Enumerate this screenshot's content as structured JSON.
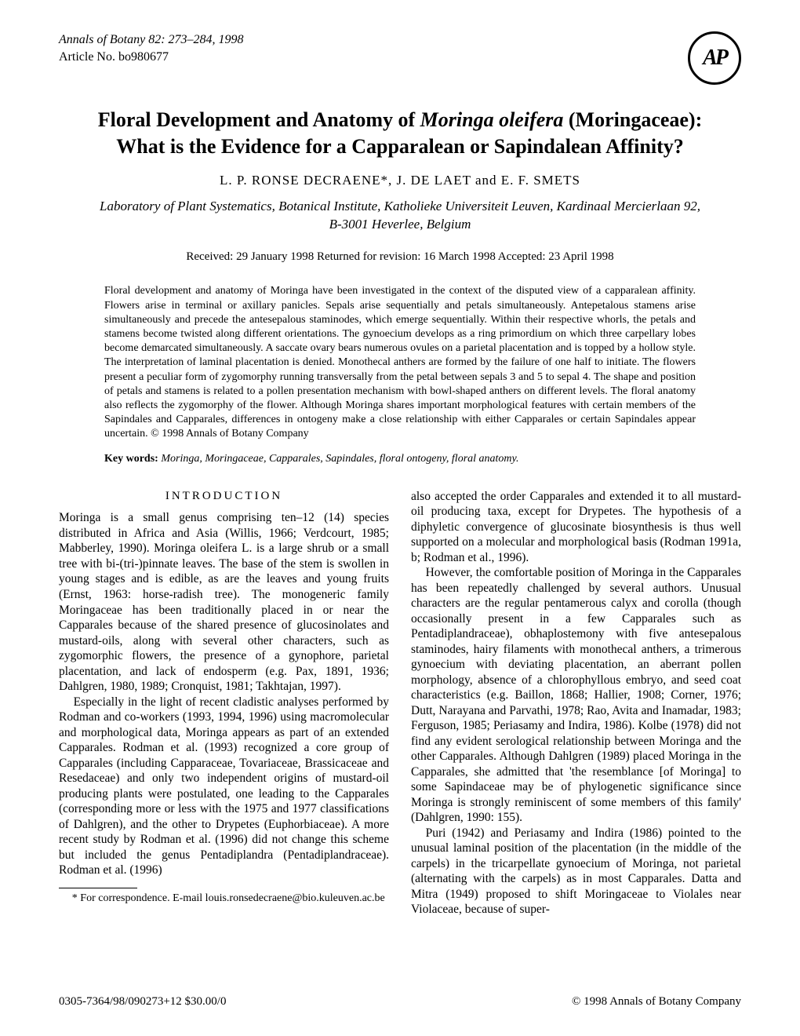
{
  "journal": {
    "name_vol": "Annals of Botany 82: 273–284, 1998",
    "article_no": "Article No. bo980677"
  },
  "logo_text": "AP",
  "title_line1": "Floral Development and Anatomy of ",
  "title_species": "Moringa oleifera",
  "title_line1b": " (Moringaceae):",
  "title_line2": "What is the Evidence for a Capparalean or Sapindalean Affinity?",
  "authors": "L. P. RONSE DECRAENE*, J. DE LAET and E. F. SMETS",
  "affiliation_line1": "Laboratory of Plant Systematics, Botanical Institute, Katholieke Universiteit Leuven, Kardinaal Mercierlaan 92,",
  "affiliation_line2": "B-3001 Heverlee, Belgium",
  "dates": "Received: 29 January 1998    Returned for revision: 16 March 1998    Accepted: 23 April 1998",
  "abstract": "Floral development and anatomy of Moringa have been investigated in the context of the disputed view of a capparalean affinity. Flowers arise in terminal or axillary panicles. Sepals arise sequentially and petals simultaneously. Antepetalous stamens arise simultaneously and precede the antesepalous staminodes, which emerge sequentially. Within their respective whorls, the petals and stamens become twisted along different orientations. The gynoecium develops as a ring primordium on which three carpellary lobes become demarcated simultaneously. A saccate ovary bears numerous ovules on a parietal placentation and is topped by a hollow style. The interpretation of laminal placentation is denied. Monothecal anthers are formed by the failure of one half to initiate. The flowers present a peculiar form of zygomorphy running transversally from the petal between sepals 3 and 5 to sepal 4. The shape and position of petals and stamens is related to a pollen presentation mechanism with bowl-shaped anthers on different levels. The floral anatomy also reflects the zygomorphy of the flower. Although Moringa shares important morphological features with certain members of the Sapindales and Capparales, differences in ontogeny make a close relationship with either Capparales or certain Sapindales appear uncertain.    © 1998 Annals of Botany Company",
  "keywords_label": "Key words:",
  "keywords_text": " Moringa, Moringaceae, Capparales, Sapindales, floral ontogeny, floral anatomy.",
  "introduction_head": "INTRODUCTION",
  "intro_p1": "Moringa is a small genus comprising ten–12 (14) species distributed in Africa and Asia (Willis, 1966; Verdcourt, 1985; Mabberley, 1990). Moringa oleifera L. is a large shrub or a small tree with bi-(tri-)pinnate leaves. The base of the stem is swollen in young stages and is edible, as are the leaves and young fruits (Ernst, 1963: horse-radish tree). The monogeneric family Moringaceae has been traditionally placed in or near the Capparales because of the shared presence of glucosinolates and mustard-oils, along with several other characters, such as zygomorphic flowers, the presence of a gynophore, parietal placentation, and lack of endosperm (e.g. Pax, 1891, 1936; Dahlgren, 1980, 1989; Cronquist, 1981; Takhtajan, 1997).",
  "intro_p2": "Especially in the light of recent cladistic analyses performed by Rodman and co-workers (1993, 1994, 1996) using macromolecular and morphological data, Moringa appears as part of an extended Capparales. Rodman et al. (1993) recognized a core group of Capparales (including Capparaceae, Tovariaceae, Brassicaceae and Resedaceae) and only two independent origins of mustard-oil producing plants were postulated, one leading to the Capparales (corresponding more or less with the 1975 and 1977 classifications of Dahlgren), and the other to Drypetes (Euphorbiaceae). A more recent study by Rodman et al. (1996) did not change this scheme but included the genus Pentadiplandra (Pentadiplandraceae). Rodman et al. (1996)",
  "intro_col2_p1": "also accepted the order Capparales and extended it to all mustard-oil producing taxa, except for Drypetes. The hypothesis of a diphyletic convergence of glucosinate biosynthesis is thus well supported on a molecular and morphological basis (Rodman 1991a, b; Rodman et al., 1996).",
  "intro_col2_p2": "However, the comfortable position of Moringa in the Capparales has been repeatedly challenged by several authors. Unusual characters are the regular pentamerous calyx and corolla (though occasionally present in a few Capparales such as Pentadiplandraceae), obhaplostemony with five antesepalous staminodes, hairy filaments with monothecal anthers, a trimerous gynoecium with deviating placentation, an aberrant pollen morphology, absence of a chlorophyllous embryo, and seed coat characteristics (e.g. Baillon, 1868; Hallier, 1908; Corner, 1976; Dutt, Narayana and Parvathi, 1978; Rao, Avita and Inamadar, 1983; Ferguson, 1985; Periasamy and Indira, 1986). Kolbe (1978) did not find any evident serological relationship between Moringa and the other Capparales. Although Dahlgren (1989) placed Moringa in the Capparales, she admitted that 'the resemblance [of Moringa] to some Sapindaceae may be of phylogenetic significance since Moringa is strongly reminiscent of some members of this family' (Dahlgren, 1990: 155).",
  "intro_col2_p3": "Puri (1942) and Periasamy and Indira (1986) pointed to the unusual laminal position of the placentation (in the middle of the carpels) in the tricarpellate gynoecium of Moringa, not parietal (alternating with the carpels) as in most Capparales. Datta and Mitra (1949) proposed to shift Moringaceae to Violales near Violaceae, because of super-",
  "footnote": "* For correspondence. E-mail louis.ronsedecraene@bio.kuleuven.ac.be",
  "footer_left": "0305-7364/98/090273+12 $30.00/0",
  "footer_right": "© 1998 Annals of Botany Company"
}
